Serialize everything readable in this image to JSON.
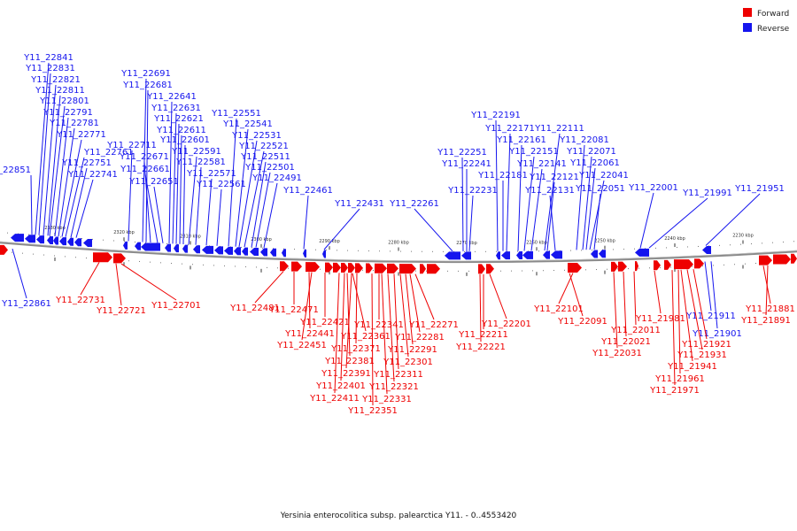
{
  "legend": {
    "forward": {
      "label": "Forward",
      "color": "#ee0000"
    },
    "reverse": {
      "label": "Reverse",
      "color": "#1515ee"
    }
  },
  "caption": "Yersinia enterocolitica subsp. palearctica Y11. - 0..4553420",
  "scale_labels": [
    "2330 kbp",
    "2320 kbp",
    "2310 kbp",
    "2300 kbp",
    "2290 kbp",
    "2280 kbp",
    "2270 kbp",
    "2260 kbp",
    "2250 kbp",
    "2240 kbp",
    "2230 kbp"
  ],
  "reverse_genes": [
    "Y11_22851",
    "Y11_22841",
    "Y11_22831",
    "Y11_22821",
    "Y11_22811",
    "Y11_22801",
    "Y11_22791",
    "Y11_22781",
    "Y11_22771",
    "Y11_22761",
    "Y11_22751",
    "Y11_22741",
    "Y11_22711",
    "Y11_22691",
    "Y11_22681",
    "Y11_22671",
    "Y11_22661",
    "Y11_22651",
    "Y11_22641",
    "Y11_22631",
    "Y11_22621",
    "Y11_22611",
    "Y11_22601",
    "Y11_22591",
    "Y11_22581",
    "Y11_22571",
    "Y11_22561",
    "Y11_22551",
    "Y11_22541",
    "Y11_22531",
    "Y11_22521",
    "Y11_22511",
    "Y11_22501",
    "Y11_22491",
    "Y11_22461",
    "Y11_22431",
    "Y11_22261",
    "Y11_22251",
    "Y11_22241",
    "Y11_22231",
    "Y11_22191",
    "Y11_22181",
    "Y11_22171",
    "Y11_22161",
    "Y11_22151",
    "Y11_22141",
    "Y11_22131",
    "Y11_22121",
    "Y11_22111",
    "Y11_22081",
    "Y11_22071",
    "Y11_22061",
    "Y11_22051",
    "Y11_22041",
    "Y11_22001",
    "Y11_21991",
    "Y11_21951",
    "Y11_22861",
    "Y11_21911",
    "Y11_21901"
  ],
  "forward_genes": [
    "Y11_22731",
    "Y11_22721",
    "Y11_22701",
    "Y11_22481",
    "Y11_22471",
    "Y11_22441",
    "Y11_22451",
    "Y11_22421",
    "Y11_22341",
    "Y11_22361",
    "Y11_22371",
    "Y11_22381",
    "Y11_22391",
    "Y11_22401",
    "Y11_22411",
    "Y11_22351",
    "Y11_22331",
    "Y11_22321",
    "Y11_22311",
    "Y11_22301",
    "Y11_22291",
    "Y11_22281",
    "Y11_22271",
    "Y11_22211",
    "Y11_22201",
    "Y11_22221",
    "Y11_22101",
    "Y11_22091",
    "Y11_22011",
    "Y11_22021",
    "Y11_22031",
    "Y11_21981",
    "Y11_21921",
    "Y11_21931",
    "Y11_21941",
    "Y11_21961",
    "Y11_21971",
    "Y11_21881",
    "Y11_21891"
  ]
}
